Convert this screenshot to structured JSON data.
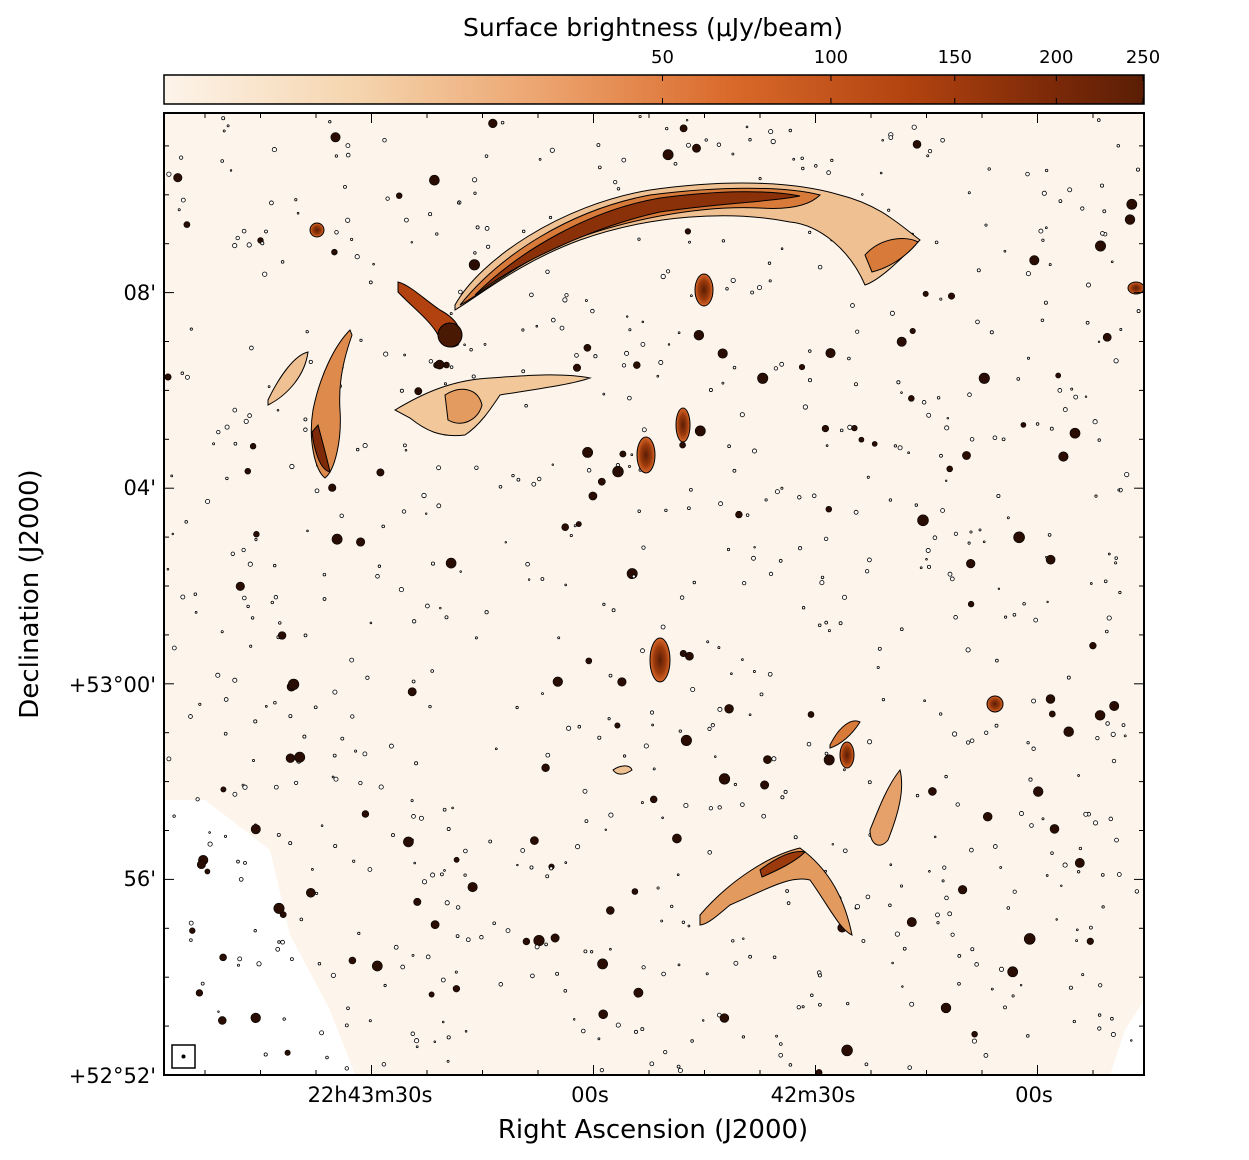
{
  "colorbar": {
    "title": "Surface brightness (μJy/beam)",
    "ticks": [
      {
        "value": 50,
        "label": "50"
      },
      {
        "value": 100,
        "label": "100"
      },
      {
        "value": 150,
        "label": "150"
      },
      {
        "value": 200,
        "label": "200"
      },
      {
        "value": 250,
        "label": "250"
      }
    ],
    "colormap": [
      "#fdf4ea",
      "#f5d4ad",
      "#eba06a",
      "#d9692a",
      "#b24310",
      "#7e2a08",
      "#5a1e05"
    ]
  },
  "axes": {
    "xlabel": "Right Ascension (J2000)",
    "ylabel": "Declination (J2000)",
    "xticks": [
      "22h43m30s",
      "00s",
      "42m30s",
      "00s"
    ],
    "yticks": [
      "+52°52'",
      "56'",
      "+53°00'",
      "04'",
      "08'"
    ]
  },
  "map": {
    "background_color": "#fdf5ec",
    "contour_color": "#000000",
    "features": [
      "arc-relic-north",
      "bent-source-west",
      "filament-north",
      "diffuse-patch-central",
      "compact-source-center",
      "filament-southeast",
      "extended-source-southeast"
    ]
  }
}
